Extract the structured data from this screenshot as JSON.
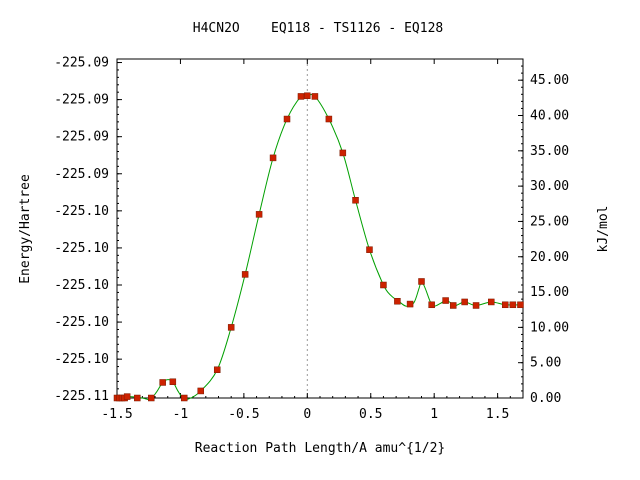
{
  "chart_data": {
    "type": "line",
    "title": "H4CN2O    EQ118 - TS1126 - EQ128",
    "xlabel": "Reaction Path Length/A amu^{1/2}",
    "ylabel_left": "Energy/Hartree",
    "ylabel_right": "kJ/mol",
    "xlim": [
      -1.5,
      1.7
    ],
    "ylim_right": [
      0,
      48
    ],
    "x_ticks": [
      "-1.5",
      "-1",
      "-0.5",
      "0",
      "0.5",
      "1",
      "1.5"
    ],
    "x_tick_values": [
      -1.5,
      -1,
      -0.5,
      0,
      0.5,
      1,
      1.5
    ],
    "y_left_ticks": [
      "-225.09",
      "-225.09",
      "-225.09",
      "-225.09",
      "-225.10",
      "-225.10",
      "-225.10",
      "-225.10",
      "-225.10",
      "-225.11"
    ],
    "y_left_tick_values": [
      47.5,
      42.25,
      37.0,
      31.75,
      26.5,
      21.25,
      16.0,
      10.75,
      5.5,
      0.25
    ],
    "y_right_ticks": [
      "0.00",
      "5.00",
      "10.00",
      "15.00",
      "20.00",
      "25.00",
      "30.00",
      "35.00",
      "40.00",
      "45.00"
    ],
    "y_right_tick_values": [
      0,
      5,
      10,
      15,
      20,
      25,
      30,
      35,
      40,
      45
    ],
    "ts_x": 0,
    "series": [
      {
        "points_x": [
          -1.5,
          -1.48,
          -1.46,
          -1.44,
          -1.42,
          -1.34,
          -1.23,
          -1.14,
          -1.06,
          -0.97,
          -0.84,
          -0.71,
          -0.6,
          -0.49,
          -0.38,
          -0.27,
          -0.16,
          -0.05,
          0.0,
          0.06,
          0.17,
          0.28,
          0.38,
          0.49,
          0.6,
          0.71,
          0.81,
          0.9,
          0.98,
          1.09,
          1.15,
          1.24,
          1.33,
          1.45,
          1.56,
          1.62,
          1.68
        ],
        "points_y": [
          0.0,
          0.0,
          0.0,
          0.0,
          0.2,
          0.0,
          0.0,
          2.2,
          2.3,
          0.0,
          1.0,
          4.0,
          10.0,
          17.5,
          26.0,
          34.0,
          39.5,
          42.7,
          42.8,
          42.7,
          39.5,
          34.7,
          28.0,
          21.0,
          16.0,
          13.7,
          13.3,
          16.5,
          13.2,
          13.8,
          13.1,
          13.6,
          13.1,
          13.6,
          13.2,
          13.2,
          13.2
        ],
        "curve_x": [
          -1.5,
          -1.4,
          -1.3,
          -1.24,
          -1.19,
          -1.14,
          -1.1,
          -1.06,
          -1.02,
          -0.98,
          -0.93,
          -0.84,
          -0.71,
          -0.6,
          -0.49,
          -0.38,
          -0.27,
          -0.16,
          -0.05,
          0.0,
          0.06,
          0.17,
          0.28,
          0.38,
          0.49,
          0.6,
          0.66,
          0.72,
          0.78,
          0.84,
          0.88,
          0.9,
          0.93,
          0.97,
          1.0,
          1.05,
          1.09,
          1.13,
          1.17,
          1.24,
          1.33,
          1.45,
          1.56,
          1.68
        ],
        "curve_y": [
          0.0,
          0.2,
          0.0,
          -0.2,
          0.8,
          2.2,
          2.6,
          2.3,
          1.0,
          0.0,
          -0.1,
          1.0,
          4.0,
          10.0,
          17.5,
          26.0,
          34.0,
          39.5,
          42.7,
          42.8,
          42.7,
          39.5,
          34.7,
          28.0,
          21.0,
          16.0,
          14.5,
          13.7,
          13.0,
          13.5,
          15.5,
          16.5,
          15.5,
          13.6,
          13.0,
          13.4,
          13.8,
          13.5,
          13.1,
          13.6,
          13.1,
          13.6,
          13.2,
          13.2
        ]
      }
    ],
    "colors": {
      "curve": "#00a000",
      "points": "#cc2200",
      "ts_line": "#999999",
      "axes": "#000000"
    }
  }
}
